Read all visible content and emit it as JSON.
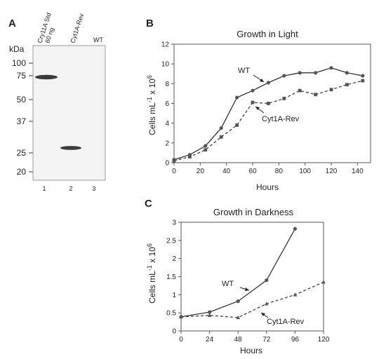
{
  "panels": {
    "a": {
      "letter": "A",
      "blot": {
        "kda_label": "kDa",
        "markers": [
          "100",
          "75",
          "50",
          "37",
          "25",
          "20"
        ],
        "lanes": [
          {
            "number": "1",
            "header_line1": "Cry11A Std",
            "header_line2": "60 ng"
          },
          {
            "number": "2",
            "header_line1": "Cyt1A-Rev",
            "header_line2": ""
          },
          {
            "number": "3",
            "header_line1": "WT",
            "header_line2": ""
          }
        ]
      }
    },
    "b": {
      "letter": "B"
    },
    "c": {
      "letter": "C"
    }
  },
  "chart_data": [
    {
      "type": "line",
      "title": "Growth in Light",
      "xlabel": "Hours",
      "ylabel_main": "Cells mL",
      "ylabel_sup1": "-1",
      "ylabel_mid": " x 10",
      "ylabel_sup2": "6",
      "xlim": [
        0,
        150
      ],
      "ylim": [
        0,
        12
      ],
      "x_ticks": [
        0,
        20,
        40,
        60,
        80,
        100,
        120,
        140
      ],
      "y_ticks": [
        0,
        2,
        4,
        6,
        8,
        10,
        12
      ],
      "grid": false,
      "series": [
        {
          "name": "WT",
          "marker": "circle",
          "dash": "solid",
          "x": [
            0,
            12,
            24,
            36,
            48,
            60,
            72,
            84,
            96,
            108,
            120,
            132,
            144
          ],
          "y": [
            0.3,
            0.8,
            1.7,
            3.5,
            6.6,
            7.3,
            8.1,
            8.8,
            9.1,
            9.1,
            9.6,
            9.1,
            8.8
          ]
        },
        {
          "name": "Cyt1A-Rev",
          "marker": "square",
          "dash": "dashed",
          "x": [
            0,
            12,
            24,
            36,
            48,
            60,
            72,
            84,
            96,
            108,
            120,
            132,
            144
          ],
          "y": [
            0.2,
            0.6,
            1.3,
            2.6,
            3.8,
            6.1,
            6.0,
            6.5,
            7.3,
            6.9,
            7.4,
            7.9,
            8.3
          ]
        }
      ]
    },
    {
      "type": "line",
      "title": "Growth in Darkness",
      "xlabel": "Hours",
      "ylabel_main": "Cells mL",
      "ylabel_sup1": "-1",
      "ylabel_mid": " x 10",
      "ylabel_sup2": "6",
      "xlim": [
        0,
        120
      ],
      "ylim": [
        0,
        3
      ],
      "x_ticks": [
        0,
        24,
        48,
        72,
        96,
        120
      ],
      "y_ticks": [
        0,
        0.5,
        1,
        1.5,
        2,
        2.5,
        3
      ],
      "grid": false,
      "series": [
        {
          "name": "WT",
          "marker": "circle",
          "dash": "solid",
          "x": [
            0,
            24,
            48,
            72,
            96
          ],
          "y": [
            0.39,
            0.52,
            0.82,
            1.4,
            2.82
          ]
        },
        {
          "name": "Cyt1A-Rev",
          "marker": "triangle",
          "dash": "dashed",
          "x": [
            0,
            24,
            48,
            72,
            96,
            120
          ],
          "y": [
            0.39,
            0.43,
            0.37,
            0.75,
            1.0,
            1.35
          ]
        }
      ]
    }
  ]
}
